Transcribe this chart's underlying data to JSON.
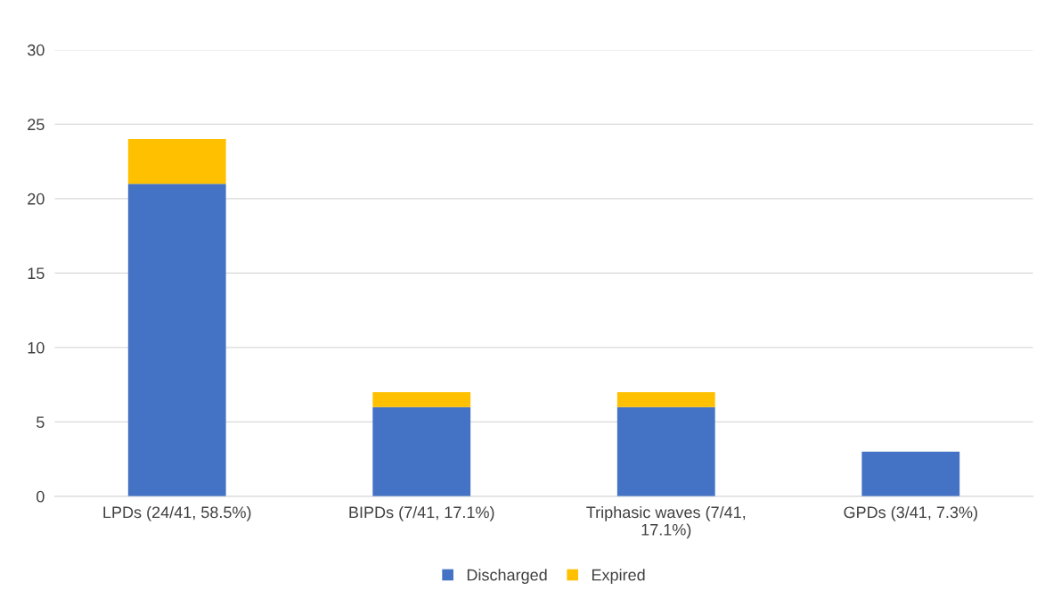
{
  "chart_data": {
    "type": "bar",
    "stacked": true,
    "categories": [
      "LPDs (24/41, 58.5%)",
      "BIPDs (7/41, 17.1%)",
      "Triphasic waves (7/41,\n17.1%)",
      "GPDs (3/41, 7.3%)"
    ],
    "series": [
      {
        "name": "Discharged",
        "color": "#4472c4",
        "values": [
          21,
          6,
          6,
          3
        ]
      },
      {
        "name": "Expired",
        "color": "#ffc000",
        "values": [
          3,
          1,
          1,
          0
        ]
      }
    ],
    "ylim": [
      0,
      30
    ],
    "yticks": [
      0,
      5,
      10,
      15,
      20,
      25,
      30
    ],
    "grid": "y",
    "legend": "bottom"
  }
}
